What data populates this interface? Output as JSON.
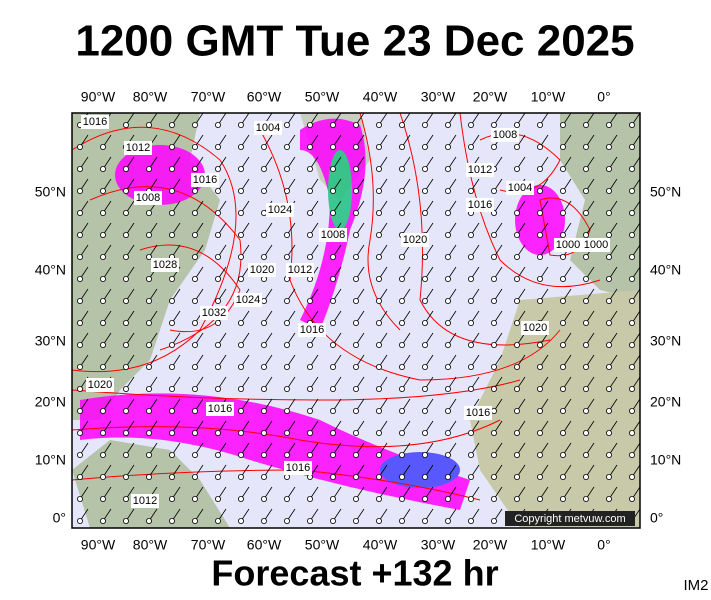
{
  "header": {
    "title": "1200 GMT Tue 23 Dec 2025"
  },
  "map": {
    "longitude_labels": [
      "90°W",
      "80°W",
      "70°W",
      "60°W",
      "50°W",
      "40°W",
      "30°W",
      "20°W",
      "10°W",
      "0°"
    ],
    "latitude_labels": [
      "50°N",
      "40°N",
      "30°N",
      "20°N",
      "10°N",
      "0°"
    ],
    "isobar_labels": [
      "1016",
      "1012",
      "1008",
      "1016",
      "1004",
      "1024",
      "1008",
      "1012",
      "1020",
      "1028",
      "1032",
      "1024",
      "1016",
      "1020",
      "1008",
      "1012",
      "1016",
      "1004",
      "1000",
      "1000",
      "1020",
      "1020",
      "1016",
      "1016",
      "1016",
      "1012"
    ],
    "copyright": "Copyright metvuw.com"
  },
  "footer": {
    "forecast": "Forecast +132 hr",
    "code": "IM2"
  }
}
